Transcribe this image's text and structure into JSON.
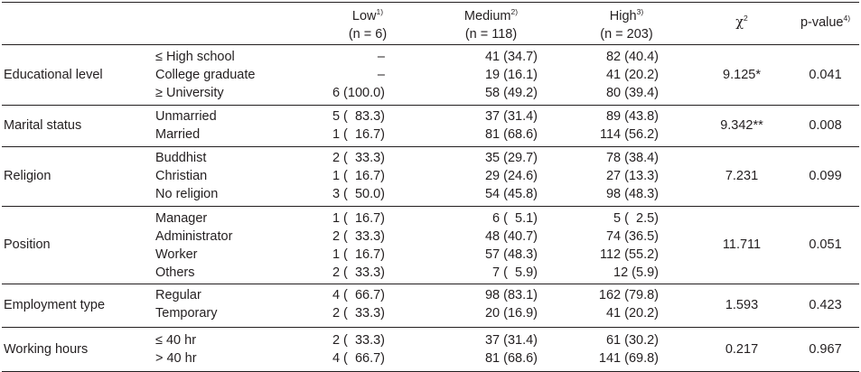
{
  "header": {
    "low": {
      "label": "Low",
      "sup": "1)",
      "n": "(n = 6)"
    },
    "medium": {
      "label": "Medium",
      "sup": "2)",
      "n": "(n = 118)"
    },
    "high": {
      "label": "High",
      "sup": "3)",
      "n": "(n = 203)"
    },
    "chi": {
      "label": "χ",
      "sup": "2"
    },
    "p": {
      "label": "p-value",
      "sup": "4)"
    }
  },
  "rows": [
    {
      "variable": "Educational level",
      "categories": [
        "≤ High school",
        "College graduate",
        "≥ University"
      ],
      "low": [
        "–",
        "–",
        "6 (100.0)"
      ],
      "medium": [
        "41 (34.7)",
        "19 (16.1)",
        "58 (49.2)"
      ],
      "high": [
        "82 (40.4)",
        "41 (20.2)",
        "80 (39.4)"
      ],
      "chi": "9.125*",
      "p": "0.041"
    },
    {
      "variable": "Marital status",
      "categories": [
        "Unmarried",
        "Married"
      ],
      "low": [
        "5 (  83.3)",
        "1 (  16.7)"
      ],
      "medium": [
        "37 (31.4)",
        "81 (68.6)"
      ],
      "high": [
        "89 (43.8)",
        "114 (56.2)"
      ],
      "chi": "9.342**",
      "p": "0.008"
    },
    {
      "variable": "Religion",
      "categories": [
        "Buddhist",
        "Christian",
        "No religion"
      ],
      "low": [
        "2 (  33.3)",
        "1 (  16.7)",
        "3 (  50.0)"
      ],
      "medium": [
        "35 (29.7)",
        "29 (24.6)",
        "54 (45.8)"
      ],
      "high": [
        "78 (38.4)",
        "27 (13.3)",
        "98 (48.3)"
      ],
      "chi": "7.231",
      "p": "0.099"
    },
    {
      "variable": "Position",
      "categories": [
        "Manager",
        "Administrator",
        "Worker",
        "Others"
      ],
      "low": [
        "1 (  16.7)",
        "2 (  33.3)",
        "1 (  16.7)",
        "2 (  33.3)"
      ],
      "medium": [
        "6 (  5.1)",
        "48 (40.7)",
        "57 (48.3)",
        "7 (  5.9)"
      ],
      "high": [
        "5 (  2.5)",
        "74 (36.5)",
        "112 (55.2)",
        "12 (5.9)"
      ],
      "chi": "11.711",
      "p": "0.051"
    },
    {
      "variable": "Employment type",
      "categories": [
        "Regular",
        "Temporary"
      ],
      "low": [
        "4 (  66.7)",
        "2 (  33.3)"
      ],
      "medium": [
        "98 (83.1)",
        "20 (16.9)"
      ],
      "high": [
        "162 (79.8)",
        "41 (20.2)"
      ],
      "chi": "1.593",
      "p": "0.423"
    },
    {
      "variable": "Working hours",
      "categories": [
        "≤ 40 hr",
        "> 40 hr"
      ],
      "low": [
        "2 (  33.3)",
        "4 (  66.7)"
      ],
      "medium": [
        "37 (31.4)",
        "81 (68.6)"
      ],
      "high": [
        "61 (30.2)",
        "141 (69.8)"
      ],
      "chi": "0.217",
      "p": "0.967"
    }
  ]
}
